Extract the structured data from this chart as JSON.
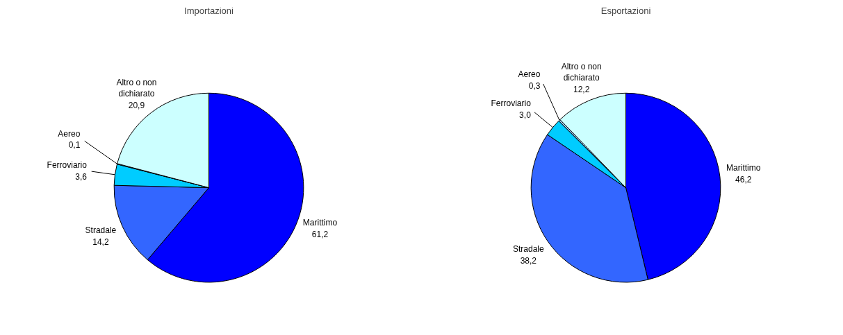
{
  "chart_data": [
    {
      "type": "pie",
      "title": "Importazioni",
      "categories": [
        "Marittimo",
        "Stradale",
        "Ferroviario",
        "Aereo",
        "Altro o non dichiarato"
      ],
      "values": [
        61.2,
        14.2,
        3.6,
        0.1,
        20.9
      ],
      "value_labels": [
        "61,2",
        "14,2",
        "3,6",
        "0,1",
        "20,9"
      ],
      "colors": [
        "#0000ff",
        "#3366ff",
        "#00ccff",
        "#99ccff",
        "#ccffff"
      ]
    },
    {
      "type": "pie",
      "title": "Esportazioni",
      "categories": [
        "Marittimo",
        "Stradale",
        "Ferroviario",
        "Aereo",
        "Altro o non dichiarato"
      ],
      "values": [
        46.2,
        38.2,
        3.0,
        0.3,
        12.2
      ],
      "value_labels": [
        "46,2",
        "38,2",
        "3,0",
        "0,3",
        "12,2"
      ],
      "colors": [
        "#0000ff",
        "#3366ff",
        "#00ccff",
        "#99ccff",
        "#ccffff"
      ]
    }
  ]
}
